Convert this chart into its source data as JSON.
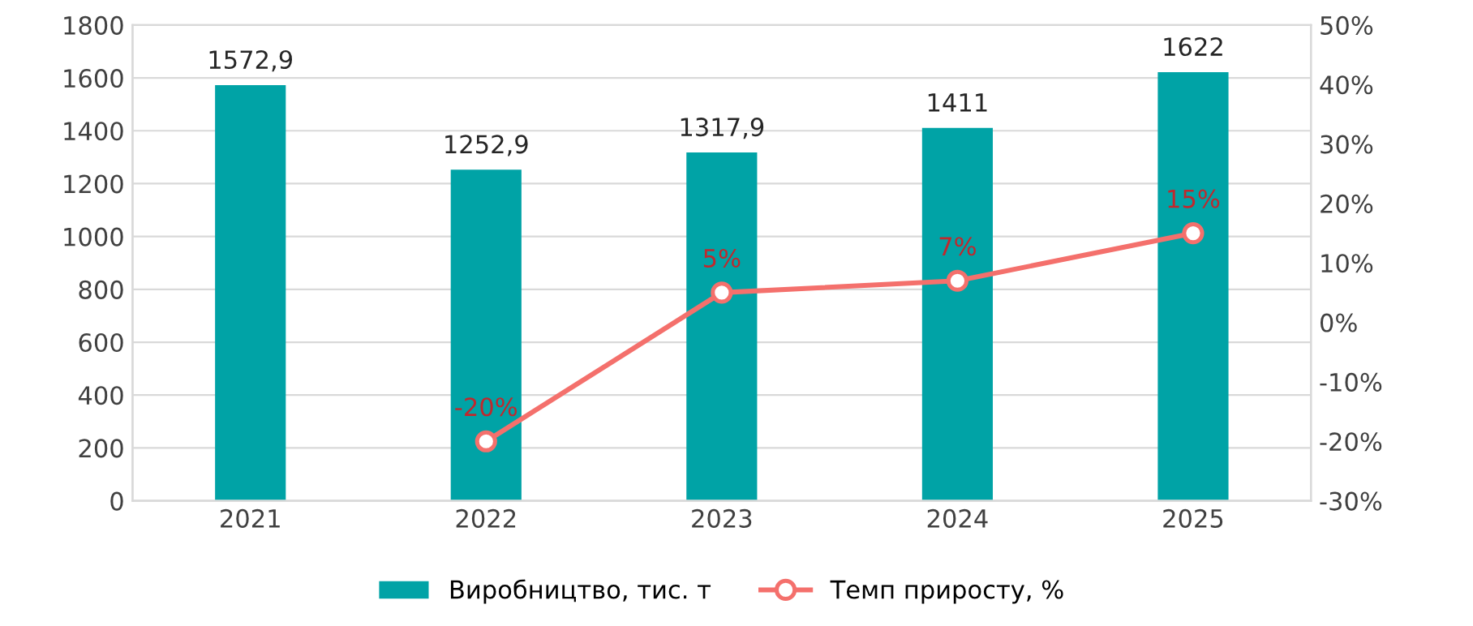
{
  "chart_data": {
    "type": "bar",
    "categories": [
      "2021",
      "2022",
      "2023",
      "2024",
      "2025"
    ],
    "series": [
      {
        "name": "Виробництво, тис. т",
        "color": "#00a3a6",
        "values": [
          1572.9,
          1252.9,
          1317.9,
          1411,
          1622
        ],
        "value_labels": [
          "1572,9",
          "1252,9",
          "1317,9",
          "1411",
          "1622"
        ]
      },
      {
        "name": "Темп приросту, %",
        "type": "line",
        "axis": "y2",
        "color": "#f4706c",
        "marker": "circle",
        "values": [
          null,
          -20,
          5,
          7,
          15
        ],
        "value_labels": [
          null,
          "-20%",
          "5%",
          "7%",
          "15%"
        ]
      }
    ],
    "ylim": [
      0,
      1800
    ],
    "yticks": [
      0,
      200,
      400,
      600,
      800,
      1000,
      1200,
      1400,
      1600,
      1800
    ],
    "y2lim": [
      -30,
      50
    ],
    "y2ticks": [
      {
        "value": -30,
        "label": "-30%"
      },
      {
        "value": -20,
        "label": "-20%"
      },
      {
        "value": -10,
        "label": "-10%"
      },
      {
        "value": 0,
        "label": "0%"
      },
      {
        "value": 10,
        "label": "10%"
      },
      {
        "value": 20,
        "label": "20%"
      },
      {
        "value": 30,
        "label": "30%"
      },
      {
        "value": 40,
        "label": "40%"
      },
      {
        "value": 50,
        "label": "50%"
      }
    ],
    "grid": "y",
    "legend": "bottom"
  }
}
